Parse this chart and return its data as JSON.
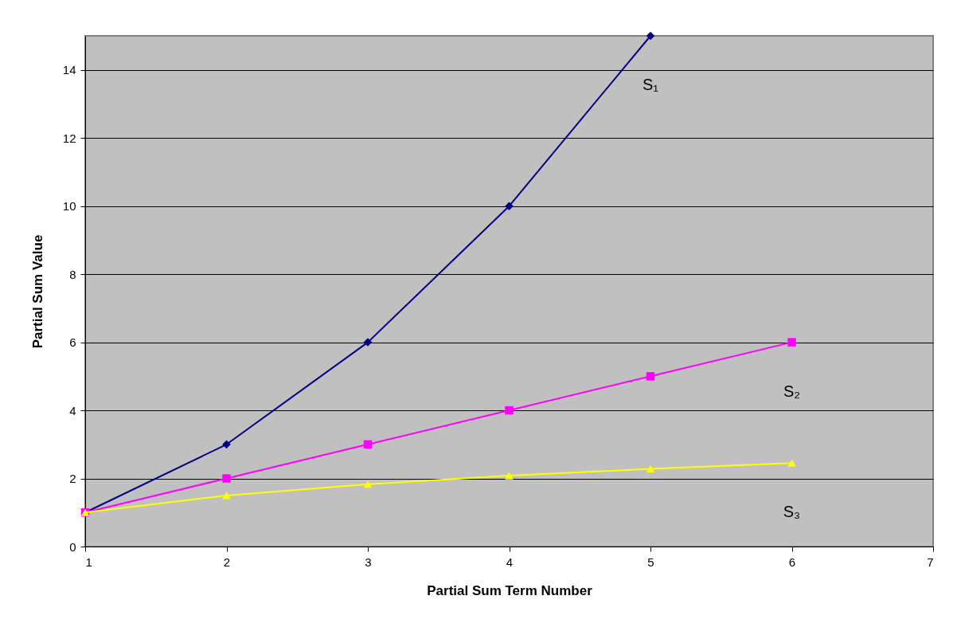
{
  "chart_data": {
    "type": "line",
    "xlabel": "Partial Sum Term Number",
    "ylabel": "Partial Sum Value",
    "x": [
      1,
      2,
      3,
      4,
      5,
      6
    ],
    "series": [
      {
        "name": "S₁",
        "color": "#000080",
        "marker": "diamond",
        "x": [
          1,
          2,
          3,
          4,
          5
        ],
        "values": [
          1,
          3,
          6,
          10,
          15
        ]
      },
      {
        "name": "S₂",
        "color": "#ff00ff",
        "marker": "square",
        "values": [
          1,
          2,
          3,
          4,
          5,
          6
        ]
      },
      {
        "name": "S₃",
        "color": "#ffff00",
        "marker": "triangle",
        "values": [
          1,
          1.5,
          1.83,
          2.08,
          2.28,
          2.45
        ]
      }
    ],
    "xlim": [
      1,
      7
    ],
    "xticks": [
      1,
      2,
      3,
      4,
      5,
      6,
      7
    ],
    "ylim": [
      0,
      15
    ],
    "yticks": [
      0,
      2,
      4,
      6,
      8,
      10,
      12,
      14
    ],
    "grid": "y",
    "legend": false,
    "line_style": "solid"
  }
}
